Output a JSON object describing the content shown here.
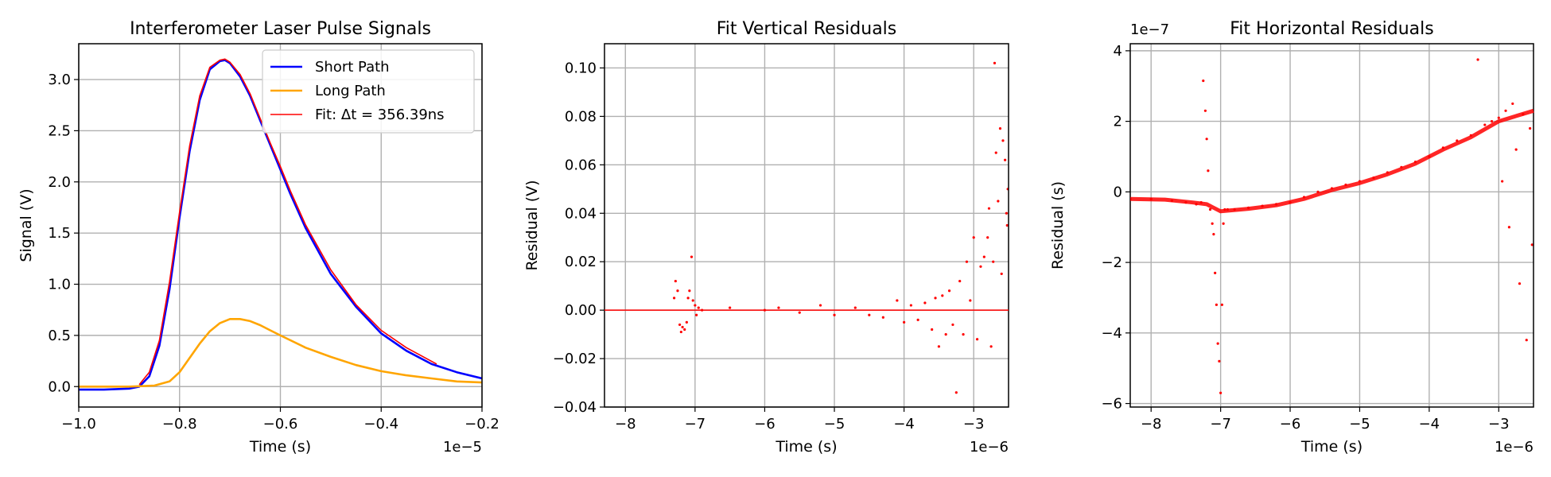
{
  "chart_data": [
    {
      "type": "line",
      "title": "Interferometer Laser Pulse Signals",
      "xlabel": "Time (s)",
      "ylabel": "Signal (V)",
      "x_offset_label": "1e−5",
      "xlim": [
        -1.0,
        -0.2
      ],
      "ylim": [
        -0.2,
        3.35
      ],
      "xticks": [
        -1.0,
        -0.8,
        -0.6,
        -0.4,
        -0.2
      ],
      "xtick_labels": [
        "−1.0",
        "−0.8",
        "−0.6",
        "−0.4",
        "−0.2"
      ],
      "yticks": [
        0.0,
        0.5,
        1.0,
        1.5,
        2.0,
        2.5,
        3.0
      ],
      "ytick_labels": [
        "0.0",
        "0.5",
        "1.0",
        "1.5",
        "2.0",
        "2.5",
        "3.0"
      ],
      "grid": true,
      "legend_position": "top-right",
      "series": [
        {
          "name": "Short Path",
          "color": "#0000ff",
          "x": [
            -1.0,
            -0.95,
            -0.9,
            -0.88,
            -0.86,
            -0.84,
            -0.82,
            -0.8,
            -0.78,
            -0.76,
            -0.74,
            -0.72,
            -0.71,
            -0.7,
            -0.68,
            -0.66,
            -0.64,
            -0.62,
            -0.6,
            -0.58,
            -0.55,
            -0.5,
            -0.45,
            -0.4,
            -0.35,
            -0.3,
            -0.25,
            -0.2
          ],
          "y": [
            -0.03,
            -0.03,
            -0.02,
            0.0,
            0.1,
            0.4,
            0.95,
            1.65,
            2.3,
            2.8,
            3.1,
            3.18,
            3.19,
            3.16,
            3.03,
            2.84,
            2.6,
            2.36,
            2.12,
            1.88,
            1.55,
            1.1,
            0.78,
            0.52,
            0.35,
            0.22,
            0.14,
            0.08
          ]
        },
        {
          "name": "Long Path",
          "color": "#ffa500",
          "x": [
            -1.0,
            -0.9,
            -0.85,
            -0.82,
            -0.8,
            -0.78,
            -0.76,
            -0.74,
            -0.72,
            -0.7,
            -0.68,
            -0.66,
            -0.64,
            -0.62,
            -0.6,
            -0.55,
            -0.5,
            -0.45,
            -0.4,
            -0.35,
            -0.3,
            -0.25,
            -0.2
          ],
          "y": [
            0.0,
            0.0,
            0.01,
            0.05,
            0.14,
            0.28,
            0.42,
            0.54,
            0.62,
            0.66,
            0.66,
            0.64,
            0.6,
            0.55,
            0.5,
            0.38,
            0.29,
            0.21,
            0.15,
            0.11,
            0.08,
            0.05,
            0.04
          ]
        },
        {
          "name": "Fit: Δt = 356.39ns",
          "color": "#ff0000",
          "x": [
            -0.88,
            -0.86,
            -0.84,
            -0.82,
            -0.8,
            -0.78,
            -0.76,
            -0.74,
            -0.72,
            -0.71,
            -0.7,
            -0.68,
            -0.66,
            -0.64,
            -0.62,
            -0.6,
            -0.58,
            -0.55,
            -0.5,
            -0.45,
            -0.4,
            -0.35,
            -0.29
          ],
          "y": [
            0.02,
            0.14,
            0.45,
            1.02,
            1.7,
            2.35,
            2.84,
            3.12,
            3.19,
            3.2,
            3.17,
            3.05,
            2.86,
            2.62,
            2.38,
            2.15,
            1.91,
            1.58,
            1.14,
            0.8,
            0.55,
            0.38,
            0.22
          ]
        }
      ]
    },
    {
      "type": "scatter",
      "title": "Fit Vertical Residuals",
      "xlabel": "Time (s)",
      "ylabel": "Residual (V)",
      "x_offset_label": "1e−6",
      "xlim": [
        -8.3,
        -2.5
      ],
      "ylim": [
        -0.04,
        0.11
      ],
      "xticks": [
        -8,
        -7,
        -6,
        -5,
        -4,
        -3
      ],
      "xtick_labels": [
        "−8",
        "−7",
        "−6",
        "−5",
        "−4",
        "−3"
      ],
      "yticks": [
        -0.04,
        -0.02,
        0.0,
        0.02,
        0.04,
        0.06,
        0.08,
        0.1
      ],
      "ytick_labels": [
        "−0.04",
        "−0.02",
        "0.00",
        "0.02",
        "0.04",
        "0.06",
        "0.08",
        "0.10"
      ],
      "grid": true,
      "series": [
        {
          "color": "#ff0000",
          "x": [
            -7.3,
            -7.28,
            -7.25,
            -7.22,
            -7.2,
            -7.18,
            -7.15,
            -7.12,
            -7.1,
            -7.08,
            -7.05,
            -7.03,
            -7.0,
            -6.98,
            -6.95,
            -6.9,
            -6.5,
            -6.0,
            -5.8,
            -5.5,
            -5.2,
            -5.0,
            -4.7,
            -4.5,
            -4.3,
            -4.1,
            -4.0,
            -3.9,
            -3.8,
            -3.7,
            -3.6,
            -3.55,
            -3.5,
            -3.45,
            -3.4,
            -3.35,
            -3.3,
            -3.25,
            -3.2,
            -3.15,
            -3.1,
            -3.05,
            -3.0,
            -2.95,
            -2.9,
            -2.85,
            -2.8,
            -2.78,
            -2.75,
            -2.72,
            -2.7,
            -2.68,
            -2.65,
            -2.62,
            -2.6,
            -2.58,
            -2.55,
            -2.53,
            -2.52,
            -2.51
          ],
          "y": [
            0.005,
            0.012,
            0.008,
            -0.006,
            -0.009,
            -0.007,
            -0.008,
            -0.005,
            0.005,
            0.008,
            0.022,
            0.004,
            0.002,
            -0.002,
            0.001,
            0.0,
            0.001,
            0.0,
            0.001,
            -0.001,
            0.002,
            -0.002,
            0.001,
            -0.002,
            -0.003,
            0.004,
            -0.005,
            0.002,
            -0.004,
            0.003,
            -0.008,
            0.005,
            -0.015,
            0.006,
            -0.01,
            0.008,
            -0.006,
            -0.034,
            0.012,
            -0.01,
            0.02,
            0.004,
            0.03,
            -0.012,
            0.018,
            0.022,
            0.03,
            0.042,
            -0.015,
            0.02,
            0.102,
            0.065,
            0.045,
            0.075,
            0.015,
            0.07,
            0.062,
            0.04,
            0.035,
            0.05
          ]
        }
      ]
    },
    {
      "type": "scatter",
      "title": "Fit Horizontal Residuals",
      "xlabel": "Time (s)",
      "ylabel": "Residual (s)",
      "x_offset_label": "1e−6",
      "y_offset_label": "1e−7",
      "xlim": [
        -8.3,
        -2.5
      ],
      "ylim": [
        -6.1,
        4.2
      ],
      "xticks": [
        -8,
        -7,
        -6,
        -5,
        -4,
        -3
      ],
      "xtick_labels": [
        "−8",
        "−7",
        "−6",
        "−5",
        "−4",
        "−3"
      ],
      "yticks": [
        -6,
        -4,
        -2,
        0,
        2,
        4
      ],
      "ytick_labels": [
        "−6",
        "−4",
        "−2",
        "0",
        "2",
        "4"
      ],
      "grid": true,
      "series": [
        {
          "color": "#ff0000",
          "x": [
            -8.3,
            -8.0,
            -7.7,
            -7.5,
            -7.35,
            -7.28,
            -7.25,
            -7.22,
            -7.2,
            -7.18,
            -7.15,
            -7.12,
            -7.1,
            -7.08,
            -7.06,
            -7.04,
            -7.02,
            -7.0,
            -6.98,
            -6.96,
            -6.94,
            -6.9,
            -6.8,
            -6.6,
            -6.4,
            -6.2,
            -6.0,
            -5.8,
            -5.6,
            -5.4,
            -5.2,
            -5.0,
            -4.8,
            -4.6,
            -4.4,
            -4.2,
            -4.0,
            -3.8,
            -3.6,
            -3.4,
            -3.3,
            -3.2,
            -3.1,
            -3.0,
            -2.95,
            -2.9,
            -2.85,
            -2.8,
            -2.75,
            -2.7,
            -2.65,
            -2.6,
            -2.55,
            -2.52
          ],
          "y": [
            -0.2,
            -0.2,
            -0.25,
            -0.3,
            -0.35,
            -0.3,
            3.15,
            2.3,
            1.5,
            0.6,
            -0.5,
            -0.9,
            -1.2,
            -2.3,
            -3.2,
            -4.3,
            -4.8,
            -5.7,
            -3.2,
            -0.9,
            -0.5,
            -0.5,
            -0.5,
            -0.45,
            -0.4,
            -0.35,
            -0.3,
            -0.15,
            0.0,
            0.1,
            0.2,
            0.3,
            0.4,
            0.55,
            0.7,
            0.85,
            1.0,
            1.25,
            1.45,
            1.6,
            3.75,
            1.9,
            2.0,
            2.1,
            0.3,
            2.3,
            -1.0,
            2.5,
            1.2,
            -2.6,
            2.2,
            -4.2,
            1.8,
            -1.5
          ]
        }
      ]
    }
  ]
}
